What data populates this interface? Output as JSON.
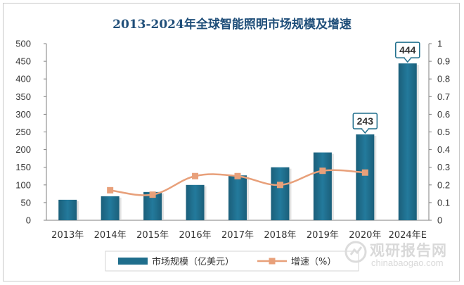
{
  "chart_data": {
    "type": "bar",
    "title": "2013-2024年全球智能照明市场规模及增速",
    "categories": [
      "2013年",
      "2014年",
      "2015年",
      "2016年",
      "2017年",
      "2018年",
      "2019年",
      "2020年",
      "2024年E"
    ],
    "series": [
      {
        "name": "市场规模（亿美元）",
        "type": "bar",
        "axis": "left",
        "color": "#1f6e8c",
        "values": [
          58,
          68,
          80,
          100,
          127,
          150,
          192,
          243,
          444
        ]
      },
      {
        "name": "增速（%）",
        "type": "line",
        "axis": "right",
        "color": "#e8a07a",
        "values": [
          null,
          0.17,
          0.145,
          0.25,
          0.25,
          0.2,
          0.28,
          0.27,
          null
        ]
      }
    ],
    "data_labels": [
      {
        "category": "2020年",
        "text": "243"
      },
      {
        "category": "2024年E",
        "text": "444"
      }
    ],
    "y_left": {
      "min": 0,
      "max": 500,
      "step": 50,
      "ticks": [
        "0",
        "50",
        "100",
        "150",
        "200",
        "250",
        "300",
        "350",
        "400",
        "450",
        "500"
      ]
    },
    "y_right": {
      "min": 0,
      "max": 1,
      "step": 0.1,
      "ticks": [
        "0",
        "0.1",
        "0.2",
        "0.3",
        "0.4",
        "0.5",
        "0.6",
        "0.7",
        "0.8",
        "0.9",
        "1"
      ]
    },
    "legend_position": "bottom",
    "grid": false
  },
  "watermark": {
    "cn": "观研报告网",
    "en": "chinabaogao.com"
  }
}
